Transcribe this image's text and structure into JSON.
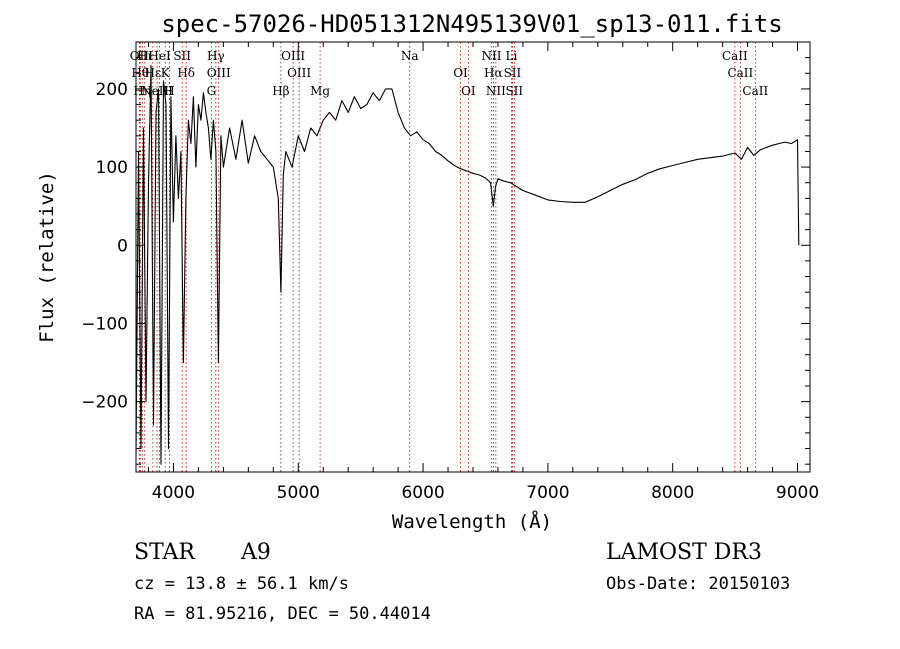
{
  "chart_data": {
    "type": "line",
    "title": "spec-57026-HD051312N495139V01_sp13-011.fits",
    "xlabel": "Wavelength (Å)",
    "ylabel": "Flux (relative)",
    "xlim": [
      3700,
      9100
    ],
    "ylim": [
      -290,
      260
    ],
    "x_ticks": [
      4000,
      5000,
      6000,
      7000,
      8000,
      9000
    ],
    "y_ticks": [
      -200,
      -100,
      0,
      100,
      200
    ],
    "series": [
      {
        "name": "spectrum",
        "x": [
          3700,
          3720,
          3740,
          3760,
          3780,
          3800,
          3820,
          3840,
          3860,
          3880,
          3900,
          3920,
          3940,
          3960,
          3980,
          4000,
          4020,
          4040,
          4060,
          4080,
          4100,
          4120,
          4140,
          4160,
          4180,
          4200,
          4220,
          4240,
          4260,
          4280,
          4300,
          4320,
          4340,
          4360,
          4380,
          4400,
          4450,
          4500,
          4550,
          4600,
          4650,
          4700,
          4750,
          4800,
          4840,
          4861,
          4880,
          4900,
          4950,
          5000,
          5050,
          5100,
          5150,
          5200,
          5250,
          5300,
          5350,
          5400,
          5450,
          5500,
          5550,
          5600,
          5650,
          5700,
          5750,
          5800,
          5850,
          5900,
          5950,
          6000,
          6050,
          6100,
          6150,
          6200,
          6250,
          6300,
          6350,
          6400,
          6450,
          6500,
          6540,
          6563,
          6580,
          6600,
          6650,
          6700,
          6750,
          6800,
          6900,
          7000,
          7100,
          7200,
          7300,
          7400,
          7500,
          7600,
          7700,
          7800,
          7900,
          8000,
          8100,
          8200,
          8300,
          8400,
          8500,
          8550,
          8600,
          8650,
          8700,
          8750,
          8800,
          8850,
          8900,
          8950,
          9000,
          9010
        ],
        "values": [
          -270,
          120,
          -260,
          150,
          -200,
          80,
          230,
          -230,
          170,
          200,
          -280,
          210,
          180,
          -260,
          190,
          30,
          140,
          60,
          120,
          -150,
          60,
          160,
          130,
          190,
          100,
          180,
          160,
          195,
          170,
          150,
          110,
          160,
          120,
          -150,
          140,
          100,
          150,
          110,
          160,
          105,
          140,
          120,
          110,
          100,
          60,
          -60,
          90,
          120,
          100,
          140,
          120,
          150,
          140,
          160,
          170,
          160,
          185,
          170,
          190,
          175,
          180,
          195,
          185,
          200,
          200,
          170,
          150,
          140,
          145,
          135,
          130,
          120,
          115,
          108,
          102,
          98,
          95,
          92,
          90,
          86,
          80,
          50,
          75,
          85,
          82,
          80,
          75,
          70,
          64,
          58,
          56,
          55,
          55,
          62,
          70,
          78,
          84,
          92,
          98,
          102,
          106,
          110,
          112,
          114,
          118,
          110,
          125,
          115,
          122,
          125,
          128,
          130,
          132,
          130,
          135,
          0
        ]
      }
    ],
    "line_markers": [
      {
        "x": 3727,
        "label": "OII"
      },
      {
        "x": 3734,
        "label": "Hθ"
      },
      {
        "x": 3750,
        "label": "Hη"
      },
      {
        "x": 3770,
        "label": "Hι"
      },
      {
        "x": 3835,
        "label": "Hε"
      },
      {
        "x": 3869,
        "label": "NeIII"
      },
      {
        "x": 3889,
        "label": "HeI"
      },
      {
        "x": 3934,
        "label": "K"
      },
      {
        "x": 3968,
        "label": "H"
      },
      {
        "x": 4070,
        "label": "SII"
      },
      {
        "x": 4102,
        "label": "Hδ"
      },
      {
        "x": 4304,
        "label": "G"
      },
      {
        "x": 4340,
        "label": "Hγ"
      },
      {
        "x": 4363,
        "label": "OIII"
      },
      {
        "x": 4861,
        "label": "Hβ"
      },
      {
        "x": 4959,
        "label": "OIII"
      },
      {
        "x": 5007,
        "label": "OIII"
      },
      {
        "x": 5175,
        "label": "Mg"
      },
      {
        "x": 5893,
        "label": "Na"
      },
      {
        "x": 6300,
        "label": "OI"
      },
      {
        "x": 6363,
        "label": "OI"
      },
      {
        "x": 6548,
        "label": "NII"
      },
      {
        "x": 6563,
        "label": "Hα"
      },
      {
        "x": 6583,
        "label": "NII"
      },
      {
        "x": 6708,
        "label": "Li"
      },
      {
        "x": 6716,
        "label": "SII"
      },
      {
        "x": 6731,
        "label": "SII"
      },
      {
        "x": 8498,
        "label": "CaII"
      },
      {
        "x": 8542,
        "label": "CaII"
      },
      {
        "x": 8662,
        "label": "CaII"
      }
    ]
  },
  "info": {
    "star": "STAR",
    "subclass": "A9",
    "survey": "LAMOST DR3",
    "cz": "cz = 13.8 ± 56.1 km/s",
    "obs_date": "Obs-Date: 20150103",
    "radec": "RA =  81.95216, DEC =  50.44014"
  }
}
